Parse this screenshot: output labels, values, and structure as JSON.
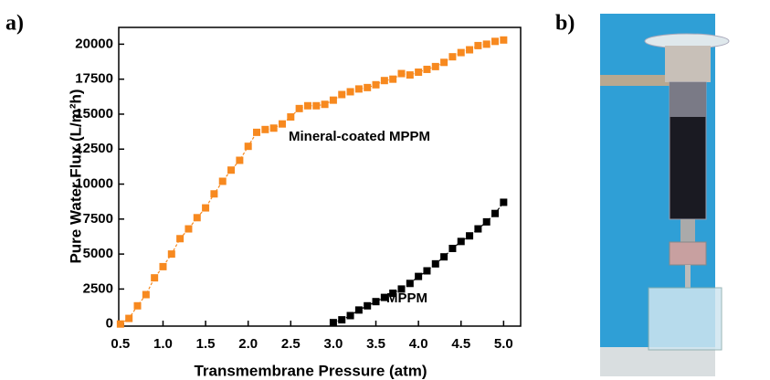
{
  "chart_data": {
    "type": "line",
    "panel_labels": [
      "a)",
      "b)"
    ],
    "xlabel": "Transmembrane Pressure (atm)",
    "ylabel": "Pure Water Flux (L/m²h)",
    "xlim": [
      0.48,
      5.2
    ],
    "ylim": [
      -150,
      21200
    ],
    "xticks": [
      0.5,
      {
        "value": 1,
        "label": "1.0"
      },
      1.5,
      {
        "value": 2,
        "label": "2.0"
      },
      2.5,
      {
        "value": 3,
        "label": "3.0"
      },
      3.5,
      {
        "value": 4,
        "label": "4.0"
      },
      4.5,
      {
        "value": 5,
        "label": "5.0"
      }
    ],
    "yticks": [
      0,
      2500,
      5000,
      7500,
      10000,
      12500,
      15000,
      17500,
      20000
    ],
    "series": [
      {
        "name": "Mineral-coated MPPM",
        "color": "#f7891f",
        "x": [
          0.5,
          0.6,
          0.7,
          0.8,
          0.9,
          1.0,
          1.1,
          1.2,
          1.3,
          1.4,
          1.5,
          1.6,
          1.7,
          1.8,
          1.9,
          2.0,
          2.1,
          2.2,
          2.3,
          2.4,
          2.5,
          2.6,
          2.7,
          2.8,
          2.9,
          3.0,
          3.1,
          3.2,
          3.3,
          3.4,
          3.5,
          3.6,
          3.7,
          3.8,
          3.9,
          4.0,
          4.1,
          4.2,
          4.3,
          4.4,
          4.5,
          4.6,
          4.7,
          4.8,
          4.9,
          5.0
        ],
        "values": [
          0,
          400,
          1300,
          2100,
          3300,
          4100,
          5000,
          6100,
          6800,
          7600,
          8300,
          9300,
          10200,
          11000,
          11700,
          12700,
          13700,
          13900,
          14000,
          14300,
          14800,
          15400,
          15600,
          15600,
          15700,
          16000,
          16400,
          16600,
          16800,
          16900,
          17100,
          17400,
          17500,
          17900,
          17800,
          18000,
          18200,
          18400,
          18700,
          19100,
          19400,
          19600,
          19900,
          20000,
          20200,
          20300
        ]
      },
      {
        "name": "MPPM",
        "color": "#000000",
        "x": [
          3.0,
          3.1,
          3.2,
          3.3,
          3.4,
          3.5,
          3.6,
          3.7,
          3.8,
          3.9,
          4.0,
          4.1,
          4.2,
          4.3,
          4.4,
          4.5,
          4.6,
          4.7,
          4.8,
          4.9,
          5.0
        ],
        "values": [
          100,
          300,
          600,
          1000,
          1300,
          1600,
          1900,
          2200,
          2500,
          2900,
          3400,
          3800,
          4300,
          4800,
          5400,
          5900,
          6300,
          6800,
          7300,
          7900,
          8700
        ]
      }
    ]
  }
}
